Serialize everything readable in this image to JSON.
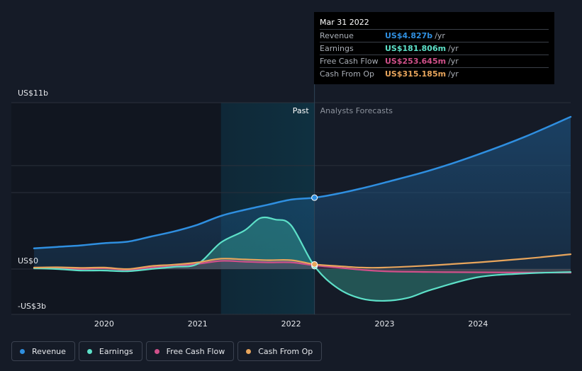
{
  "colors": {
    "revenue": "#2f8fe0",
    "earnings": "#5de0c8",
    "free_cash_flow": "#d0508a",
    "cash_from_op": "#e8a55c",
    "past_region": "#0f2a3a",
    "background": "#151b27"
  },
  "regions": {
    "past_label": "Past",
    "forecast_label": "Analysts Forecasts"
  },
  "tooltip": {
    "date": "Mar 31 2022",
    "rows": [
      {
        "label": "Revenue",
        "value": "US$4.827b",
        "unit": "/yr",
        "color": "#2f8fe0"
      },
      {
        "label": "Earnings",
        "value": "US$181.806m",
        "unit": "/yr",
        "color": "#5de0c8"
      },
      {
        "label": "Free Cash Flow",
        "value": "US$253.645m",
        "unit": "/yr",
        "color": "#d0508a"
      },
      {
        "label": "Cash From Op",
        "value": "US$315.185m",
        "unit": "/yr",
        "color": "#e8a55c"
      }
    ]
  },
  "legend": [
    {
      "label": "Revenue",
      "color": "#2f8fe0"
    },
    {
      "label": "Earnings",
      "color": "#5de0c8"
    },
    {
      "label": "Free Cash Flow",
      "color": "#d0508a"
    },
    {
      "label": "Cash From Op",
      "color": "#e8a55c"
    }
  ],
  "chart_data": {
    "type": "line",
    "x_unit": "year",
    "y_unit": "US$ billions",
    "ylim": [
      -3,
      11
    ],
    "y_tick_labels": [
      {
        "value": 11,
        "label": "US$11b"
      },
      {
        "value": 0,
        "label": "US$0"
      },
      {
        "value": -3,
        "label": "-US$3b"
      }
    ],
    "x_ticks": [
      {
        "value": 2020,
        "label": "2020"
      },
      {
        "value": 2021,
        "label": "2021"
      },
      {
        "value": 2022,
        "label": "2022"
      },
      {
        "value": 2023,
        "label": "2023"
      },
      {
        "value": 2024,
        "label": "2024"
      }
    ],
    "xlim": [
      2019.25,
      2024.99
    ],
    "past_shade_start": 2021.25,
    "forecast_start": 2022.25,
    "highlight_x": 2022.25,
    "series": [
      {
        "name": "Revenue",
        "key": "revenue",
        "points": [
          [
            2019.25,
            1.4
          ],
          [
            2019.5,
            1.5
          ],
          [
            2019.75,
            1.6
          ],
          [
            2020.0,
            1.75
          ],
          [
            2020.25,
            1.85
          ],
          [
            2020.5,
            2.2
          ],
          [
            2020.75,
            2.55
          ],
          [
            2021.0,
            3.0
          ],
          [
            2021.25,
            3.6
          ],
          [
            2021.5,
            4.0
          ],
          [
            2021.75,
            4.35
          ],
          [
            2022.0,
            4.7
          ],
          [
            2022.25,
            4.83
          ],
          [
            2022.5,
            5.1
          ],
          [
            2022.75,
            5.45
          ],
          [
            2023.0,
            5.85
          ],
          [
            2023.5,
            6.7
          ],
          [
            2024.0,
            7.75
          ],
          [
            2024.5,
            8.95
          ],
          [
            2024.99,
            10.3
          ]
        ]
      },
      {
        "name": "Earnings",
        "key": "earnings",
        "points": [
          [
            2019.25,
            0.05
          ],
          [
            2019.5,
            0.0
          ],
          [
            2019.75,
            -0.1
          ],
          [
            2020.0,
            -0.1
          ],
          [
            2020.25,
            -0.15
          ],
          [
            2020.5,
            0.0
          ],
          [
            2020.75,
            0.15
          ],
          [
            2021.0,
            0.35
          ],
          [
            2021.25,
            1.8
          ],
          [
            2021.5,
            2.6
          ],
          [
            2021.67,
            3.45
          ],
          [
            2021.83,
            3.35
          ],
          [
            2022.0,
            2.95
          ],
          [
            2022.25,
            0.2
          ],
          [
            2022.5,
            -1.3
          ],
          [
            2022.75,
            -2.0
          ],
          [
            2023.0,
            -2.15
          ],
          [
            2023.25,
            -1.95
          ],
          [
            2023.5,
            -1.4
          ],
          [
            2024.0,
            -0.55
          ],
          [
            2024.5,
            -0.3
          ],
          [
            2024.99,
            -0.2
          ]
        ]
      },
      {
        "name": "Free Cash Flow",
        "key": "free_cash_flow",
        "points": [
          [
            2019.25,
            0.05
          ],
          [
            2019.5,
            0.05
          ],
          [
            2019.75,
            0.0
          ],
          [
            2020.0,
            0.05
          ],
          [
            2020.25,
            -0.05
          ],
          [
            2020.5,
            0.1
          ],
          [
            2020.75,
            0.2
          ],
          [
            2021.0,
            0.35
          ],
          [
            2021.25,
            0.55
          ],
          [
            2021.5,
            0.5
          ],
          [
            2021.75,
            0.45
          ],
          [
            2022.0,
            0.45
          ],
          [
            2022.25,
            0.25
          ],
          [
            2022.5,
            0.1
          ],
          [
            2022.75,
            -0.05
          ],
          [
            2023.0,
            -0.15
          ],
          [
            2023.5,
            -0.2
          ],
          [
            2024.0,
            -0.22
          ],
          [
            2024.99,
            -0.25
          ]
        ]
      },
      {
        "name": "Cash From Op",
        "key": "cash_from_op",
        "points": [
          [
            2019.25,
            0.1
          ],
          [
            2019.5,
            0.12
          ],
          [
            2019.75,
            0.08
          ],
          [
            2020.0,
            0.1
          ],
          [
            2020.25,
            0.0
          ],
          [
            2020.5,
            0.2
          ],
          [
            2020.75,
            0.3
          ],
          [
            2021.0,
            0.45
          ],
          [
            2021.25,
            0.7
          ],
          [
            2021.5,
            0.65
          ],
          [
            2021.75,
            0.6
          ],
          [
            2022.0,
            0.6
          ],
          [
            2022.25,
            0.32
          ],
          [
            2022.5,
            0.2
          ],
          [
            2022.75,
            0.1
          ],
          [
            2023.0,
            0.1
          ],
          [
            2023.5,
            0.25
          ],
          [
            2024.0,
            0.45
          ],
          [
            2024.5,
            0.7
          ],
          [
            2024.99,
            1.0
          ]
        ]
      }
    ]
  }
}
